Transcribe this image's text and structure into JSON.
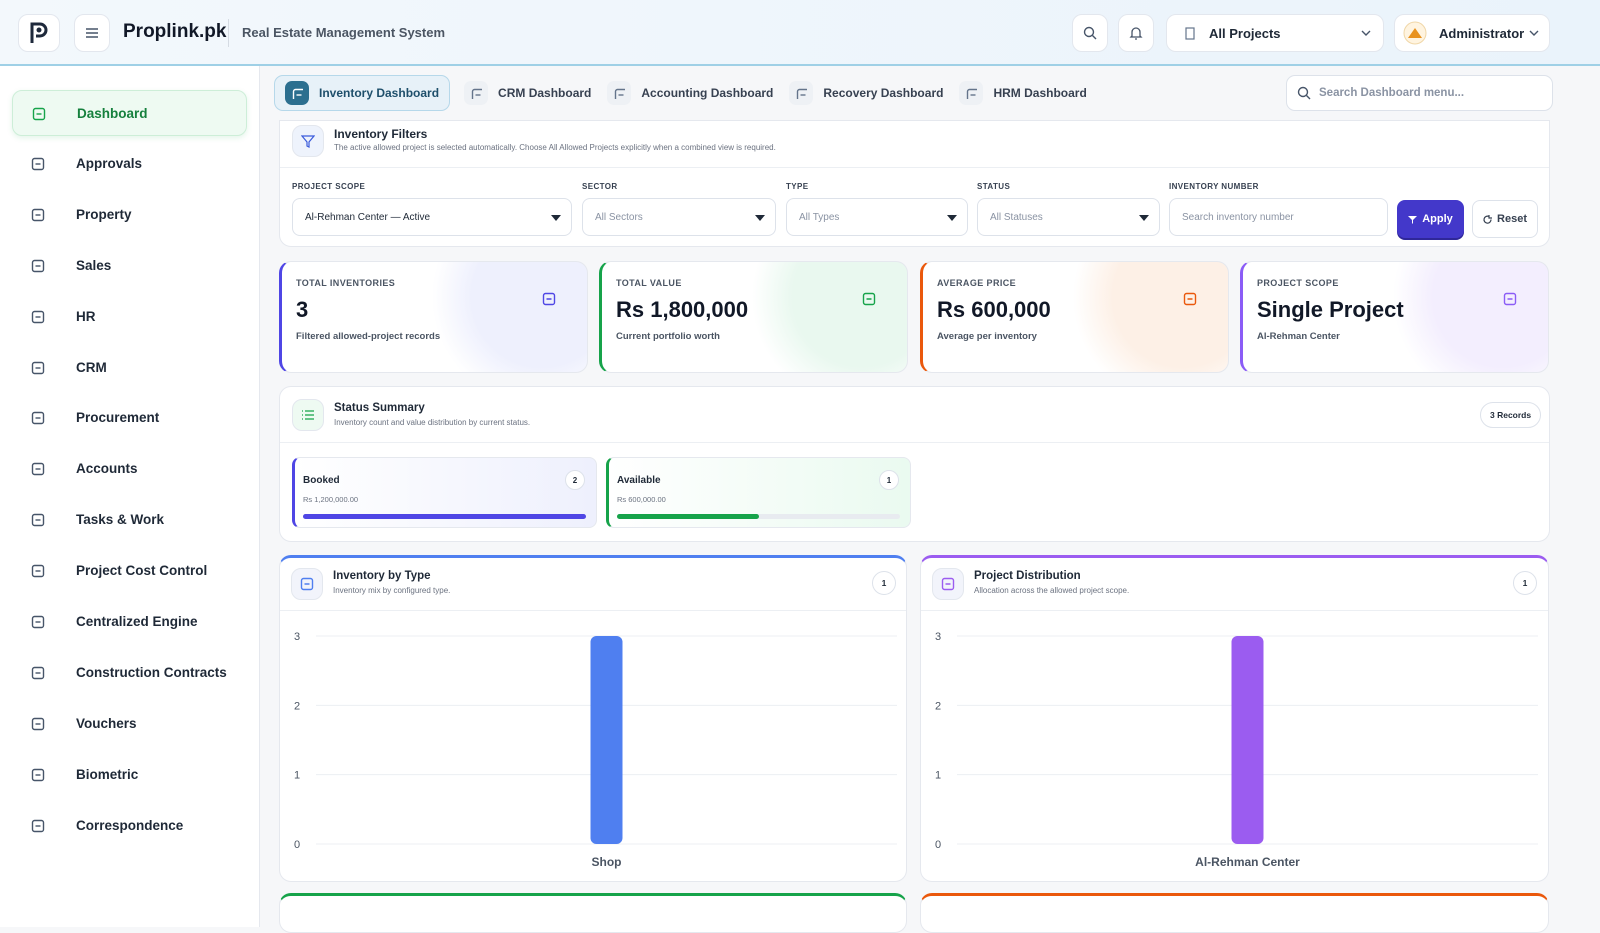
{
  "header": {
    "brand": "Proplink.pk",
    "subtitle": "Real Estate Management System",
    "project_selector": "All Projects",
    "user": "Administrator"
  },
  "sidebar": {
    "items": [
      "Dashboard",
      "Approvals",
      "Property",
      "Sales",
      "HR",
      "CRM",
      "Procurement",
      "Accounts",
      "Tasks & Work",
      "Project Cost Control",
      "Centralized Engine",
      "Construction Contracts",
      "Vouchers",
      "Biometric",
      "Correspondence"
    ]
  },
  "tabs": [
    "Inventory Dashboard",
    "CRM Dashboard",
    "Accounting Dashboard",
    "Recovery Dashboard",
    "HRM Dashboard"
  ],
  "search_placeholder": "Search Dashboard menu...",
  "filters": {
    "title": "Inventory Filters",
    "description": "The active allowed project is selected automatically. Choose All Allowed Projects explicitly when a combined view is required.",
    "fields": [
      {
        "label": "PROJECT SCOPE",
        "text": "Al-Rehman Center — Active"
      },
      {
        "label": "SECTOR",
        "text": "All Sectors"
      },
      {
        "label": "TYPE",
        "text": "All Types"
      },
      {
        "label": "STATUS",
        "text": "All Statuses"
      },
      {
        "label": "INVENTORY NUMBER",
        "text": "Search inventory number"
      }
    ],
    "apply": "Apply",
    "reset": "Reset"
  },
  "stats": [
    {
      "label": "TOTAL INVENTORIES",
      "value": "3",
      "note": "Filtered allowed-project records"
    },
    {
      "label": "TOTAL VALUE",
      "value": "Rs 1,800,000",
      "note": "Current portfolio worth"
    },
    {
      "label": "AVERAGE PRICE",
      "value": "Rs 600,000",
      "note": "Average per inventory"
    },
    {
      "label": "PROJECT SCOPE",
      "value": "Single Project",
      "note": "Al-Rehman Center"
    }
  ],
  "status_summary": {
    "title": "Status Summary",
    "description": "Inventory count and value distribution by current status.",
    "badge": "3 Records",
    "items": [
      {
        "name": "Booked",
        "amount": "Rs 1,200,000.00",
        "count": 2,
        "color": "#4f46e5"
      },
      {
        "name": "Available",
        "amount": "Rs 600,000.00",
        "count": 1,
        "color": "#16a34a"
      }
    ]
  },
  "charts": [
    {
      "type": "bar",
      "title": "Inventory by Type",
      "subtitle": "Inventory mix by configured type.",
      "badge": 1,
      "categories": [
        "Shop"
      ],
      "values": [
        3
      ],
      "ylim": [
        0,
        3
      ],
      "yticks": [
        0,
        1,
        2,
        3
      ],
      "grid": true,
      "color": "#4f7ff0"
    },
    {
      "type": "bar",
      "title": "Project Distribution",
      "subtitle": "Allocation across the allowed project scope.",
      "badge": 1,
      "categories": [
        "Al-Rehman Center"
      ],
      "values": [
        3
      ],
      "ylim": [
        0,
        3
      ],
      "yticks": [
        0,
        1,
        2,
        3
      ],
      "grid": true,
      "color": "#9b5cf0"
    }
  ]
}
